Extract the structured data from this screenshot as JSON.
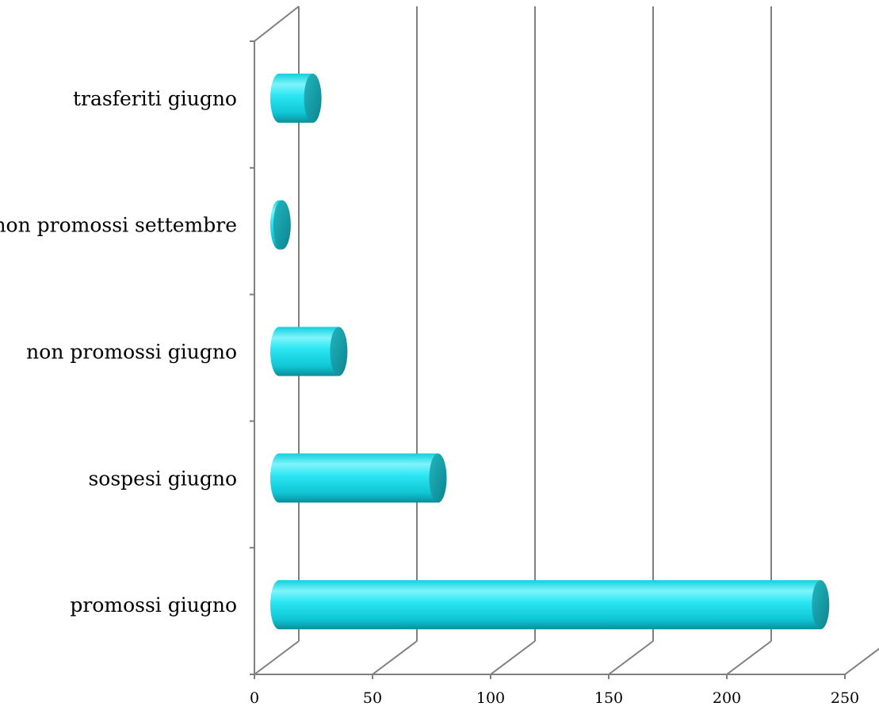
{
  "chart_data": {
    "type": "bar",
    "orientation": "horizontal",
    "three_d": true,
    "categories": [
      "promossi giugno",
      "sospesi giugno",
      "non promossi giugno",
      "non promossi settembre",
      "trasferiti giugno"
    ],
    "series": [
      {
        "values": [
          235,
          73,
          31,
          7,
          20
        ],
        "color": "#16d8e6"
      }
    ],
    "xlim": [
      0,
      250
    ],
    "xticks": [
      "0",
      "50",
      "100",
      "150",
      "200",
      "250"
    ],
    "grid": true,
    "legend": "none",
    "title": "",
    "xlabel": "",
    "ylabel": ""
  }
}
